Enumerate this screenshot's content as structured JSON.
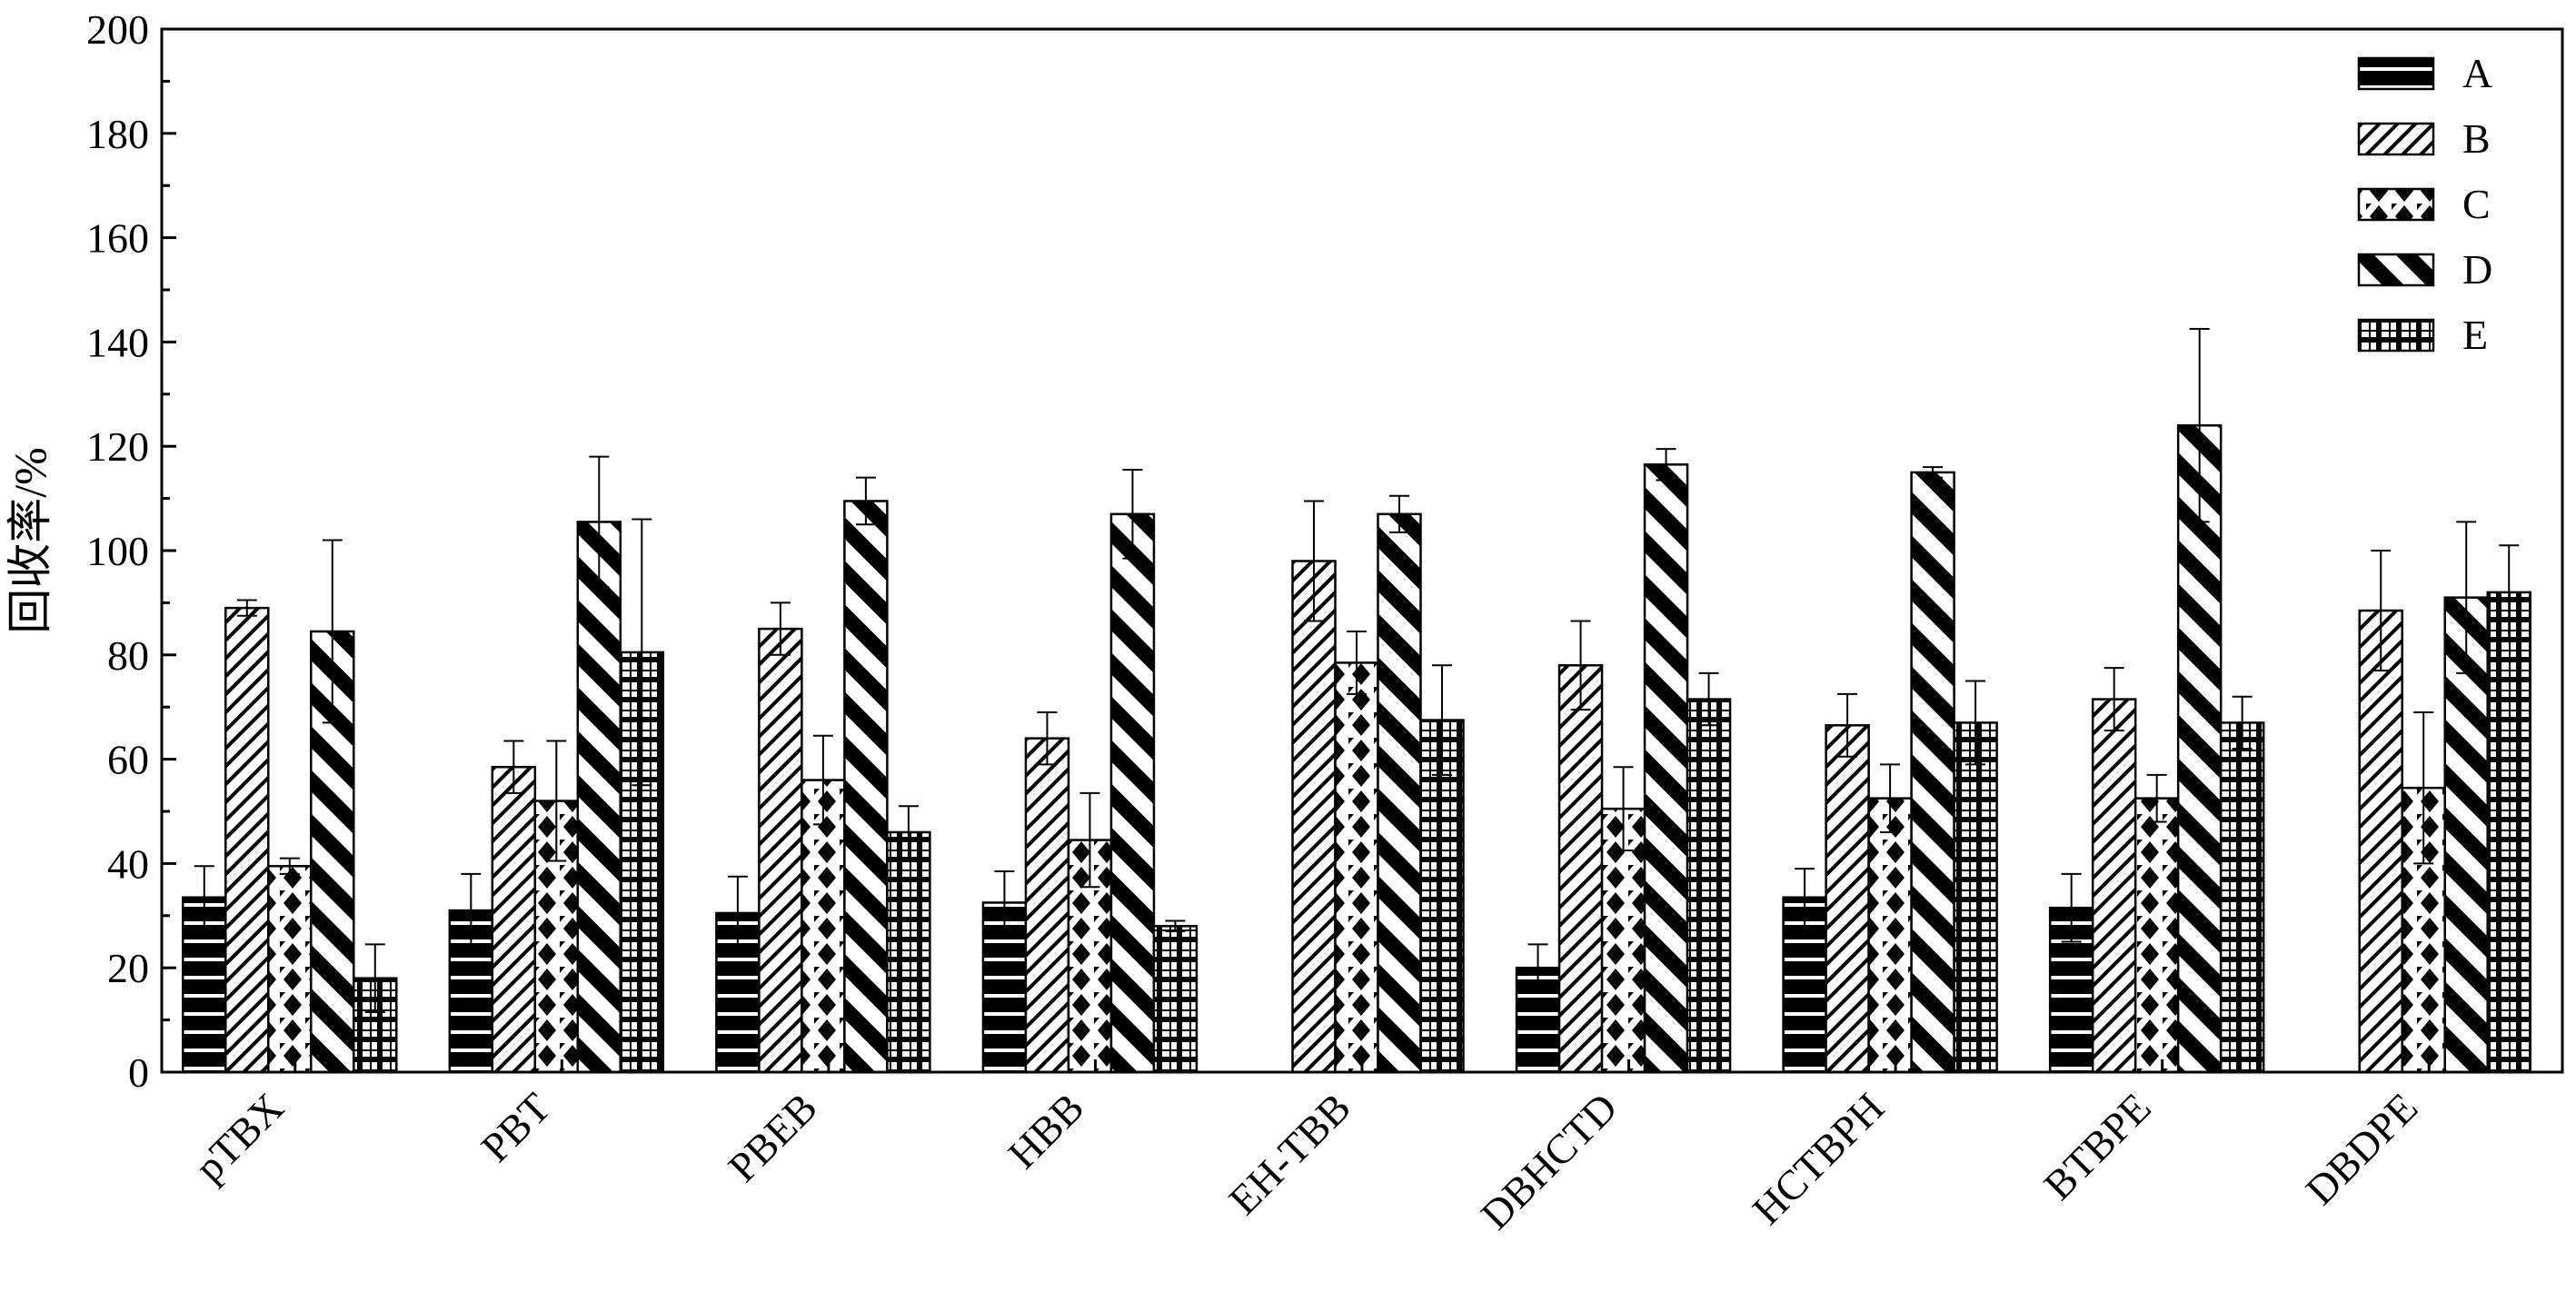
{
  "chart_data": {
    "type": "bar",
    "ylabel": "回收率/%",
    "xlabel": "",
    "ylim": [
      0,
      200
    ],
    "yticks": [
      0,
      20,
      40,
      60,
      80,
      100,
      120,
      140,
      160,
      180,
      200
    ],
    "legend_position": "top-right",
    "grid": false,
    "categories": [
      "pTBX",
      "PBT",
      "PBEB",
      "HBB",
      "EH-TBB",
      "DBHCTD",
      "HCTBPH",
      "BTBPE",
      "DBDPE"
    ],
    "series": [
      {
        "name": "A",
        "pattern": "horizontal-lines",
        "values": [
          33.5,
          31,
          30.5,
          32.5,
          null,
          20,
          33.5,
          31.5,
          null
        ],
        "errors": [
          6,
          7,
          7,
          6,
          null,
          4.5,
          5.5,
          6.5,
          null
        ]
      },
      {
        "name": "B",
        "pattern": "diagonal-fine",
        "values": [
          89,
          58.5,
          85,
          64,
          98,
          78,
          66.5,
          71.5,
          88.5
        ],
        "errors": [
          1.5,
          5,
          5,
          5,
          11.5,
          8.5,
          6,
          6,
          11.5
        ]
      },
      {
        "name": "C",
        "pattern": "diamond-checker",
        "values": [
          39.5,
          52,
          56,
          44.5,
          78.5,
          50.5,
          52.5,
          52.5,
          54.5
        ],
        "errors": [
          1.5,
          11.5,
          8.5,
          9,
          6,
          8,
          6.5,
          4.5,
          14.5
        ]
      },
      {
        "name": "D",
        "pattern": "diagonal-bold",
        "values": [
          84.5,
          105.5,
          109.5,
          107,
          107,
          116.5,
          115,
          124,
          91
        ],
        "errors": [
          17.5,
          12.5,
          4.5,
          8.5,
          3.5,
          3,
          1,
          18.5,
          14.5
        ]
      },
      {
        "name": "E",
        "pattern": "grid-blocks",
        "values": [
          18,
          80.5,
          46,
          28,
          67.5,
          71.5,
          67,
          67,
          92
        ],
        "errors": [
          6.5,
          25.5,
          5,
          1,
          10.5,
          5,
          8,
          5,
          9
        ]
      }
    ]
  }
}
